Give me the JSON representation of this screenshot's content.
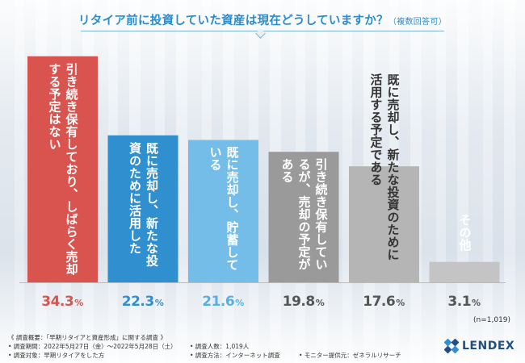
{
  "chart_data": {
    "type": "bar",
    "title": "リタイア前に投資していた資産は現在どうしていますか？",
    "subtitle": "（複数回答可）",
    "categories": [
      "引き続き保有しており、しばらく売却する予定はない",
      "既に売却し、新たな投資のために活用した",
      "既に売却し、貯蓄している",
      "引き続き保有しているが、売却の予定がある",
      "既に売却し、新たな投資のために活用する予定である",
      "その他"
    ],
    "values": [
      34.3,
      22.3,
      21.6,
      19.8,
      17.6,
      3.1
    ],
    "value_labels": [
      {
        "num": "34.3",
        "unit": "%"
      },
      {
        "num": "22.3",
        "unit": "%"
      },
      {
        "num": "21.6",
        "unit": "%"
      },
      {
        "num": "19.8",
        "unit": "%"
      },
      {
        "num": "17.6",
        "unit": "%"
      },
      {
        "num": "3.1",
        "unit": "%"
      }
    ],
    "colors": [
      "#d9534f",
      "#2f8fcf",
      "#73bde8",
      "#9a9a9a",
      "#b5b5b5",
      "#c4c4c4"
    ],
    "label_colors": [
      "#ffffff",
      "#ffffff",
      "#ffffff",
      "#ffffff",
      "#333333",
      "#ffffff"
    ],
    "value_colors": [
      "#d9534f",
      "#2f8fcf",
      "#5aaee2",
      "#555555",
      "#555555",
      "#555555"
    ],
    "ylim": [
      0,
      35
    ],
    "note": "(n=1,019)"
  },
  "footer": {
    "overview": "《 調査概要：「早期リタイアと資産形成」に関する調査 》",
    "period": "• 調査期間：2022年5月27日（金）〜2022年5月28日（土）",
    "people": "• 調査人数：1,019人",
    "target": "• 調査対象：早期リタイアをした方",
    "method": "• 調査方法：インターネット調査",
    "provider": "• モニター提供元：ゼネラルリサーチ"
  },
  "logo": {
    "text": "LENDEX"
  }
}
